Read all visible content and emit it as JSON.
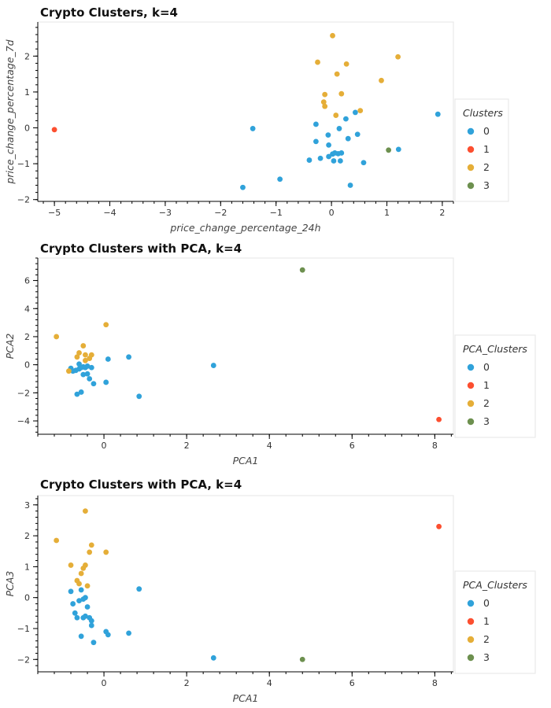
{
  "colors": [
    "#30a2da",
    "#fc4f30",
    "#e5ae38",
    "#6d904f"
  ],
  "chart_data": [
    {
      "type": "scatter",
      "title": "Crypto Clusters, k=4",
      "xlabel": "price_change_percentage_24h",
      "ylabel": "price_change_percentage_7d",
      "xlim": [
        -5.3,
        2.2
      ],
      "ylim": [
        -2.05,
        2.95
      ],
      "xticks": [
        -5,
        -4,
        -3,
        -2,
        -1,
        0,
        1,
        2
      ],
      "yticks": [
        -2,
        -1,
        0,
        1,
        2
      ],
      "legend": {
        "title": "Clusters",
        "labels": [
          "0",
          "1",
          "2",
          "3"
        ],
        "placement": "right"
      },
      "series": [
        {
          "name": "0",
          "points": [
            [
              -1.42,
              -0.02
            ],
            [
              -1.6,
              -1.66
            ],
            [
              -0.93,
              -1.43
            ],
            [
              -0.4,
              -0.9
            ],
            [
              -0.2,
              -0.85
            ],
            [
              -0.28,
              0.1
            ],
            [
              -0.28,
              -0.38
            ],
            [
              -0.06,
              -0.2
            ],
            [
              -0.05,
              -0.48
            ],
            [
              -0.05,
              -0.8
            ],
            [
              0.02,
              -0.73
            ],
            [
              0.06,
              -0.7
            ],
            [
              0.12,
              -0.72
            ],
            [
              0.04,
              -0.92
            ],
            [
              0.16,
              -0.92
            ],
            [
              0.18,
              -0.7
            ],
            [
              0.14,
              -0.02
            ],
            [
              0.26,
              0.25
            ],
            [
              0.3,
              -0.3
            ],
            [
              0.34,
              -1.6
            ],
            [
              0.43,
              0.43
            ],
            [
              0.47,
              -0.18
            ],
            [
              0.58,
              -0.97
            ],
            [
              1.21,
              -0.6
            ],
            [
              1.92,
              0.38
            ]
          ]
        },
        {
          "name": "1",
          "points": [
            [
              -5.0,
              -0.05
            ]
          ]
        },
        {
          "name": "2",
          "points": [
            [
              -0.25,
              1.83
            ],
            [
              0.02,
              2.57
            ],
            [
              0.1,
              1.5
            ],
            [
              0.27,
              1.78
            ],
            [
              0.18,
              0.95
            ],
            [
              -0.12,
              0.93
            ],
            [
              -0.14,
              0.72
            ],
            [
              -0.12,
              0.6
            ],
            [
              0.08,
              0.35
            ],
            [
              0.52,
              0.48
            ],
            [
              0.9,
              1.32
            ],
            [
              1.2,
              1.98
            ]
          ]
        },
        {
          "name": "3",
          "points": [
            [
              1.03,
              -0.62
            ]
          ]
        }
      ]
    },
    {
      "type": "scatter",
      "title": "Crypto Clusters with PCA, k=4",
      "xlabel": "PCA1",
      "ylabel": "PCA2",
      "xlim": [
        -1.6,
        8.45
      ],
      "ylim": [
        -4.95,
        7.6
      ],
      "xticks": [
        0,
        2,
        4,
        6,
        8
      ],
      "yticks": [
        -4,
        -2,
        0,
        2,
        4,
        6
      ],
      "legend": {
        "title": "PCA_Clusters",
        "labels": [
          "0",
          "1",
          "2",
          "3"
        ],
        "placement": "right"
      },
      "series": [
        {
          "name": "0",
          "points": [
            [
              -0.8,
              -0.25
            ],
            [
              -0.75,
              -0.45
            ],
            [
              -0.68,
              -0.4
            ],
            [
              -0.6,
              -0.3
            ],
            [
              -0.6,
              0.05
            ],
            [
              -0.55,
              -0.2
            ],
            [
              -0.5,
              -0.15
            ],
            [
              -0.45,
              -0.2
            ],
            [
              -0.4,
              -0.1
            ],
            [
              -0.3,
              -0.2
            ],
            [
              -0.5,
              -0.7
            ],
            [
              -0.4,
              -0.65
            ],
            [
              -0.35,
              -1.0
            ],
            [
              -0.25,
              -1.35
            ],
            [
              -0.55,
              -1.95
            ],
            [
              -0.65,
              -2.1
            ],
            [
              0.05,
              -1.25
            ],
            [
              0.1,
              0.4
            ],
            [
              0.6,
              0.55
            ],
            [
              0.85,
              -2.25
            ],
            [
              2.65,
              -0.05
            ]
          ]
        },
        {
          "name": "1",
          "points": [
            [
              8.1,
              -3.9
            ]
          ]
        },
        {
          "name": "2",
          "points": [
            [
              -1.15,
              2.0
            ],
            [
              0.05,
              2.85
            ],
            [
              -0.5,
              1.35
            ],
            [
              -0.6,
              0.85
            ],
            [
              -0.45,
              0.7
            ],
            [
              -0.3,
              0.7
            ],
            [
              -0.65,
              0.55
            ],
            [
              -0.45,
              0.3
            ],
            [
              -0.85,
              -0.45
            ],
            [
              -0.35,
              0.45
            ]
          ]
        },
        {
          "name": "3",
          "points": [
            [
              4.8,
              6.75
            ]
          ]
        }
      ]
    },
    {
      "type": "scatter",
      "title": "Crypto Clusters with PCA, k=4",
      "xlabel": "PCA1",
      "ylabel": "PCA3",
      "xlim": [
        -1.6,
        8.45
      ],
      "ylim": [
        -2.4,
        3.3
      ],
      "xticks": [
        0,
        2,
        4,
        6,
        8
      ],
      "yticks": [
        -2,
        -1,
        0,
        1,
        2,
        3
      ],
      "legend": {
        "title": "PCA_Clusters",
        "labels": [
          "0",
          "1",
          "2",
          "3"
        ],
        "placement": "right"
      },
      "series": [
        {
          "name": "0",
          "points": [
            [
              -0.8,
              0.2
            ],
            [
              -0.75,
              -0.2
            ],
            [
              -0.7,
              -0.5
            ],
            [
              -0.6,
              -0.1
            ],
            [
              -0.55,
              0.25
            ],
            [
              -0.5,
              -0.05
            ],
            [
              -0.45,
              0.0
            ],
            [
              -0.4,
              -0.3
            ],
            [
              -0.35,
              -0.65
            ],
            [
              -0.5,
              -0.65
            ],
            [
              -0.45,
              -0.6
            ],
            [
              -0.65,
              -0.65
            ],
            [
              -0.3,
              -0.75
            ],
            [
              -0.3,
              -0.9
            ],
            [
              -0.55,
              -1.25
            ],
            [
              -0.25,
              -1.45
            ],
            [
              0.05,
              -1.1
            ],
            [
              0.1,
              -1.2
            ],
            [
              0.6,
              -1.15
            ],
            [
              0.85,
              0.28
            ],
            [
              2.65,
              -1.95
            ]
          ]
        },
        {
          "name": "1",
          "points": [
            [
              8.1,
              2.3
            ]
          ]
        },
        {
          "name": "2",
          "points": [
            [
              -1.15,
              1.85
            ],
            [
              -0.8,
              1.05
            ],
            [
              -0.45,
              2.8
            ],
            [
              -0.5,
              0.95
            ],
            [
              -0.55,
              0.78
            ],
            [
              -0.65,
              0.55
            ],
            [
              -0.6,
              0.45
            ],
            [
              -0.4,
              0.38
            ],
            [
              -0.35,
              1.47
            ],
            [
              -0.3,
              1.7
            ],
            [
              0.05,
              1.47
            ],
            [
              -0.45,
              1.05
            ]
          ]
        },
        {
          "name": "3",
          "points": [
            [
              4.8,
              -2.0
            ]
          ]
        }
      ]
    }
  ]
}
